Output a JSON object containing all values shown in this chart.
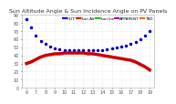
{
  "title": "Sun Altitude Angle & Sun Incidence Angle on PV Panels",
  "background_color": "#ffffff",
  "grid_color": "#cccccc",
  "series": [
    {
      "label": "Sun Altitude Angle",
      "color": "#0000cc",
      "marker": "o",
      "linestyle": "none",
      "linewidth": 1.0,
      "x": [
        0.5,
        1.0,
        1.5,
        2.0,
        2.5,
        3.0,
        3.5,
        4.0,
        4.5,
        5.0,
        5.5,
        6.0,
        6.5,
        7.0,
        7.5,
        8.0,
        8.5,
        9.0,
        9.5,
        10.0,
        10.5,
        11.0,
        11.5,
        12.0,
        12.5,
        13.0,
        13.5
      ],
      "y": [
        85,
        75,
        65,
        58,
        54,
        51,
        49,
        48,
        47,
        47,
        46,
        46,
        46,
        46,
        46,
        47,
        47,
        48,
        49,
        50,
        51,
        52,
        54,
        57,
        60,
        64,
        70
      ]
    },
    {
      "label": "Sun Incidence Angle",
      "color": "#cc0000",
      "marker": "none",
      "linestyle": "-",
      "linewidth": 2.5,
      "x": [
        0.5,
        1.0,
        1.5,
        2.0,
        2.5,
        3.0,
        3.5,
        4.0,
        4.5,
        5.0,
        5.5,
        6.0,
        6.5,
        7.0,
        7.5,
        8.0,
        8.5,
        9.0,
        9.5,
        10.0,
        10.5,
        11.0,
        11.5,
        12.0,
        12.5,
        13.0,
        13.5
      ],
      "y": [
        30,
        32,
        35,
        38,
        40,
        41,
        42,
        42,
        43,
        43,
        43,
        43,
        43,
        42,
        42,
        41,
        40,
        39,
        38,
        37,
        36,
        35,
        34,
        32,
        29,
        26,
        22
      ]
    }
  ],
  "ylim": [
    0,
    90
  ],
  "xlim": [
    0,
    14
  ],
  "yticks": [
    0,
    10,
    20,
    30,
    40,
    50,
    60,
    70,
    80,
    90
  ],
  "xticks": [
    0.5,
    1.5,
    2.5,
    3.5,
    4.5,
    5.5,
    6.5,
    7.5,
    8.5,
    9.5,
    10.5,
    11.5,
    12.5,
    13.5
  ],
  "xtick_labels": [
    "6",
    "7",
    "8",
    "9",
    "10",
    "11",
    "12",
    "13",
    "14",
    "15",
    "16",
    "17",
    "18",
    "19"
  ],
  "ytick_labels": [
    "0",
    "10",
    "20",
    "30",
    "40",
    "50",
    "60",
    "70",
    "80",
    "90"
  ],
  "legend_colors": [
    "#0000ff",
    "#ff0000",
    "#00cc00",
    "#aa00aa",
    "#ff6600"
  ],
  "legend_labels": [
    "HOT",
    "Sun Alt",
    "Sun Inc",
    "APPARENT",
    "TBD"
  ],
  "markersize": 2.5,
  "title_fontsize": 4.5,
  "tick_fontsize": 3.5,
  "legend_fontsize": 3.0
}
